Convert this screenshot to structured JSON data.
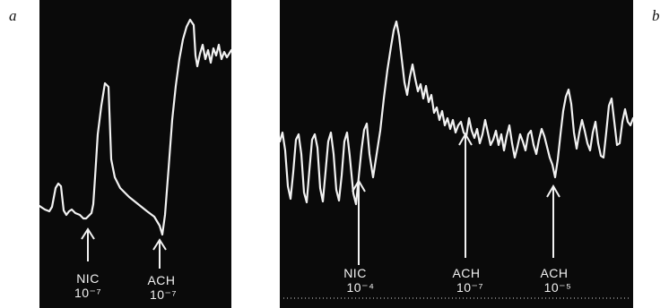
{
  "figure": {
    "panel_a": {
      "letter": "a",
      "markers": [
        {
          "drug": "NIC",
          "concentration": "10⁻⁷"
        },
        {
          "drug": "ACH",
          "concentration": "10⁻⁷"
        }
      ]
    },
    "panel_b": {
      "letter": "b",
      "markers": [
        {
          "drug": "NIC",
          "concentration": "10⁻⁴"
        },
        {
          "drug": "ACH",
          "concentration": "10⁻⁷"
        },
        {
          "drug": "ACH",
          "concentration": "10⁻⁵"
        }
      ]
    }
  },
  "colors": {
    "panel_background": "#0a0a0a",
    "trace": "#f2f2f2",
    "page_background": "#ffffff"
  }
}
